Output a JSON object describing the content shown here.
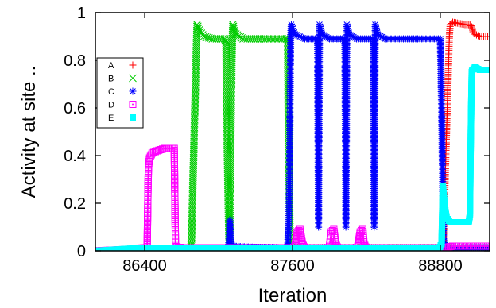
{
  "chart_data": {
    "type": "scatter",
    "title": "",
    "xlabel": "Iteration",
    "ylabel": "Activity at site ..",
    "xlim": [
      86000,
      89200
    ],
    "ylim": [
      0,
      1
    ],
    "xticks": [
      {
        "value": 86400,
        "label": "86400"
      },
      {
        "value": 87600,
        "label": "87600"
      },
      {
        "value": 88800,
        "label": "88800"
      }
    ],
    "yticks": [
      {
        "value": 0,
        "label": "0"
      },
      {
        "value": 0.2,
        "label": "0.2"
      },
      {
        "value": 0.4,
        "label": "0.4"
      },
      {
        "value": 0.6,
        "label": "0.6"
      },
      {
        "value": 0.8,
        "label": "0.8"
      },
      {
        "value": 1,
        "label": "1"
      }
    ],
    "legend_position": "left-middle",
    "grid": false,
    "series": [
      {
        "name": "A",
        "color": "#ff0000",
        "marker": "plus",
        "points": [
          [
            86000,
            0
          ],
          [
            88815,
            0
          ],
          [
            88822,
            0.02
          ],
          [
            88826,
            0.08
          ],
          [
            88830,
            0.15
          ],
          [
            88834,
            0.22
          ],
          [
            88838,
            0.29
          ],
          [
            88842,
            0.36
          ],
          [
            88846,
            0.43
          ],
          [
            88850,
            0.5
          ],
          [
            88854,
            0.57
          ],
          [
            88858,
            0.64
          ],
          [
            88862,
            0.71
          ],
          [
            88866,
            0.78
          ],
          [
            88870,
            0.85
          ],
          [
            88874,
            0.91
          ],
          [
            88880,
            0.95
          ],
          [
            88900,
            0.96
          ],
          [
            88950,
            0.955
          ],
          [
            89000,
            0.95
          ],
          [
            89040,
            0.95
          ],
          [
            89055,
            0.94
          ],
          [
            89065,
            0.92
          ],
          [
            89080,
            0.91
          ],
          [
            89120,
            0.9
          ],
          [
            89200,
            0.9
          ]
        ]
      },
      {
        "name": "B",
        "color": "#00cc00",
        "marker": "x",
        "points": [
          [
            86000,
            0
          ],
          [
            86775,
            0
          ],
          [
            86780,
            0.05
          ],
          [
            86785,
            0.15
          ],
          [
            86790,
            0.25
          ],
          [
            86795,
            0.35
          ],
          [
            86800,
            0.45
          ],
          [
            86805,
            0.55
          ],
          [
            86810,
            0.65
          ],
          [
            86815,
            0.75
          ],
          [
            86820,
            0.85
          ],
          [
            86825,
            0.95
          ],
          [
            86850,
            0.92
          ],
          [
            86880,
            0.9
          ],
          [
            86950,
            0.89
          ],
          [
            87050,
            0.89
          ],
          [
            87060,
            0.88
          ],
          [
            87065,
            0.6
          ],
          [
            87072,
            0.4
          ],
          [
            87078,
            0.2
          ],
          [
            87085,
            0.04
          ],
          [
            87090,
            0.02
          ],
          [
            87093,
            0.2
          ],
          [
            87100,
            0.5
          ],
          [
            87108,
            0.8
          ],
          [
            87115,
            0.95
          ],
          [
            87140,
            0.91
          ],
          [
            87200,
            0.89
          ],
          [
            87400,
            0.89
          ],
          [
            87550,
            0.89
          ],
          [
            87560,
            0.89
          ],
          [
            87565,
            0.6
          ],
          [
            87572,
            0.3
          ],
          [
            87580,
            0.05
          ],
          [
            87590,
            0.02
          ],
          [
            87600,
            0.01
          ],
          [
            87650,
            0.01
          ],
          [
            89200,
            0.01
          ]
        ]
      },
      {
        "name": "C",
        "color": "#0000ff",
        "marker": "star",
        "points": [
          [
            86000,
            0
          ],
          [
            87080,
            0.01
          ],
          [
            87085,
            0.05
          ],
          [
            87090,
            0.13
          ],
          [
            87095,
            0.08
          ],
          [
            87100,
            0.04
          ],
          [
            87110,
            0.02
          ],
          [
            87500,
            0.01
          ],
          [
            87560,
            0.01
          ],
          [
            87565,
            0.08
          ],
          [
            87570,
            0.14
          ],
          [
            87575,
            0.3
          ],
          [
            87580,
            0.6
          ],
          [
            87585,
            0.9
          ],
          [
            87590,
            0.95
          ],
          [
            87620,
            0.91
          ],
          [
            87700,
            0.89
          ],
          [
            87800,
            0.89
          ],
          [
            87803,
            0.88
          ],
          [
            87807,
            0.5
          ],
          [
            87811,
            0.1
          ],
          [
            87815,
            0.5
          ],
          [
            87819,
            0.95
          ],
          [
            87840,
            0.91
          ],
          [
            87900,
            0.89
          ],
          [
            88020,
            0.89
          ],
          [
            88025,
            0.88
          ],
          [
            88029,
            0.5
          ],
          [
            88033,
            0.1
          ],
          [
            88037,
            0.5
          ],
          [
            88041,
            0.95
          ],
          [
            88060,
            0.91
          ],
          [
            88120,
            0.89
          ],
          [
            88250,
            0.89
          ],
          [
            88255,
            0.88
          ],
          [
            88259,
            0.5
          ],
          [
            88263,
            0.1
          ],
          [
            88267,
            0.5
          ],
          [
            88271,
            0.95
          ],
          [
            88290,
            0.91
          ],
          [
            88350,
            0.89
          ],
          [
            88600,
            0.89
          ],
          [
            88800,
            0.89
          ],
          [
            88810,
            0.6
          ],
          [
            88818,
            0.3
          ],
          [
            88826,
            0.05
          ],
          [
            88840,
            0.01
          ],
          [
            89200,
            0.01
          ]
        ]
      },
      {
        "name": "D",
        "color": "#ff00ff",
        "marker": "dotted-square",
        "points": [
          [
            86000,
            0
          ],
          [
            86420,
            0.01
          ],
          [
            86424,
            0.15
          ],
          [
            86428,
            0.3
          ],
          [
            86432,
            0.36
          ],
          [
            86440,
            0.39
          ],
          [
            86460,
            0.41
          ],
          [
            86500,
            0.42
          ],
          [
            86560,
            0.43
          ],
          [
            86620,
            0.43
          ],
          [
            86640,
            0.43
          ],
          [
            86650,
            0.02
          ],
          [
            86700,
            0.01
          ],
          [
            87600,
            0.01
          ],
          [
            87620,
            0.02
          ],
          [
            87640,
            0.08
          ],
          [
            87660,
            0.09
          ],
          [
            87680,
            0.03
          ],
          [
            87700,
            0.01
          ],
          [
            87880,
            0.01
          ],
          [
            87900,
            0.02
          ],
          [
            87915,
            0.08
          ],
          [
            87935,
            0.09
          ],
          [
            87950,
            0.03
          ],
          [
            87970,
            0.01
          ],
          [
            88110,
            0.01
          ],
          [
            88130,
            0.02
          ],
          [
            88150,
            0.08
          ],
          [
            88170,
            0.09
          ],
          [
            88180,
            0.03
          ],
          [
            88200,
            0.01
          ],
          [
            88800,
            0.01
          ],
          [
            88900,
            0.02
          ],
          [
            89000,
            0.02
          ],
          [
            89100,
            0.02
          ],
          [
            89200,
            0.02
          ]
        ]
      },
      {
        "name": "E",
        "color": "#00ffff",
        "marker": "filled-square",
        "points": [
          [
            86000,
            0
          ],
          [
            86300,
            0.01
          ],
          [
            88790,
            0.01
          ],
          [
            88810,
            0.03
          ],
          [
            88820,
            0.27
          ],
          [
            88830,
            0.22
          ],
          [
            88840,
            0.17
          ],
          [
            88850,
            0.14
          ],
          [
            88880,
            0.12
          ],
          [
            88950,
            0.12
          ],
          [
            89000,
            0.12
          ],
          [
            89030,
            0.12
          ],
          [
            89040,
            0.15
          ],
          [
            89045,
            0.4
          ],
          [
            89050,
            0.6
          ],
          [
            89055,
            0.75
          ],
          [
            89060,
            0.76
          ],
          [
            89080,
            0.77
          ],
          [
            89120,
            0.76
          ],
          [
            89200,
            0.76
          ]
        ]
      }
    ]
  }
}
